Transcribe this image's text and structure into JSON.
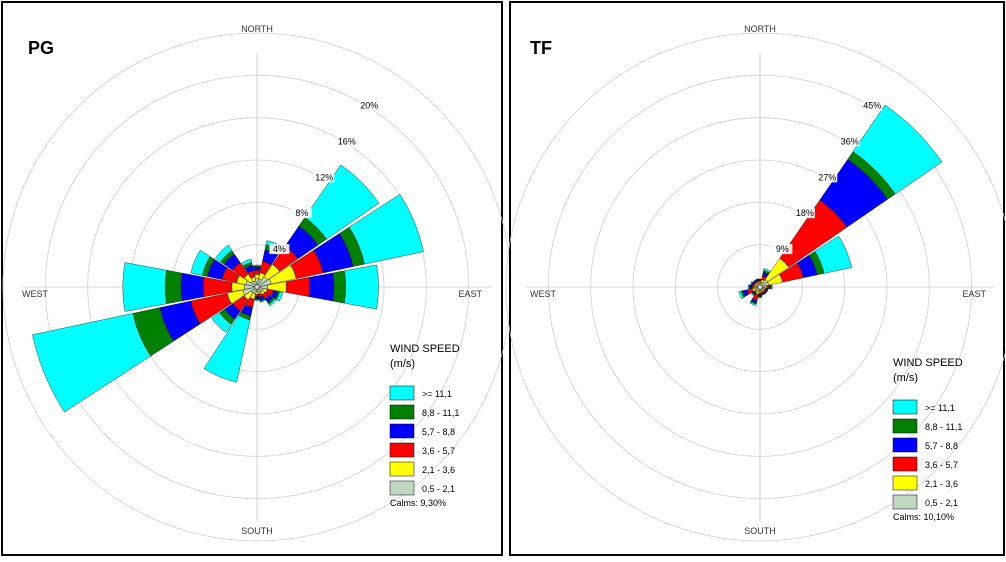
{
  "chart_data": [
    {
      "type": "windrose",
      "title": "PG",
      "compass": {
        "north": "NORTH",
        "east": "EAST",
        "south": "SOUTH",
        "west": "WEST"
      },
      "rmax": 24,
      "ring_labels": [
        "4%",
        "8%",
        "12%",
        "16%",
        "20%"
      ],
      "ring_values": [
        4,
        8,
        12,
        16,
        20
      ],
      "legend": {
        "title_line1": "WIND SPEED",
        "title_line2": "(m/s)",
        "bins": [
          ">= 11,1",
          "8,8 - 11,1",
          "5,7 -  8,8",
          "3,6 -  5,7",
          "2,1 -  3,6",
          "0,5 -  2,1"
        ],
        "calms": "Calms: 9,30%"
      },
      "directions": [
        {
          "angle": 0,
          "cumulative": [
            0.6,
            1.0,
            1.4,
            1.7,
            1.8,
            1.9
          ]
        },
        {
          "angle": 22.5,
          "cumulative": [
            0.6,
            1.2,
            2.3,
            3.4,
            3.9,
            4.3
          ]
        },
        {
          "angle": 45,
          "cumulative": [
            1.0,
            2.4,
            4.5,
            6.8,
            7.8,
            13.8
          ]
        },
        {
          "angle": 67.5,
          "cumulative": [
            1.2,
            3.6,
            6.2,
            9.1,
            10.2,
            15.9
          ]
        },
        {
          "angle": 90,
          "cumulative": [
            0.8,
            2.6,
            4.8,
            7.1,
            8.2,
            11.3
          ]
        },
        {
          "angle": 112.5,
          "cumulative": [
            0.4,
            0.8,
            1.4,
            1.8,
            2.0,
            2.3
          ]
        },
        {
          "angle": 135,
          "cumulative": [
            0.4,
            0.7,
            1.2,
            1.6,
            1.8,
            2.0
          ]
        },
        {
          "angle": 157.5,
          "cumulative": [
            0.3,
            0.5,
            0.8,
            1.1,
            1.2,
            1.3
          ]
        },
        {
          "angle": 180,
          "cumulative": [
            0.3,
            0.5,
            0.7,
            0.9,
            1.0,
            1.1
          ]
        },
        {
          "angle": 202.5,
          "cumulative": [
            0.5,
            1.0,
            1.8,
            2.6,
            3.0,
            9.0
          ]
        },
        {
          "angle": 225,
          "cumulative": [
            0.5,
            1.3,
            2.6,
            3.5,
            4.1,
            5.0
          ]
        },
        {
          "angle": 247.5,
          "cumulative": [
            1.2,
            2.7,
            6.2,
            9.2,
            11.8,
            21.5
          ]
        },
        {
          "angle": 270,
          "cumulative": [
            1.0,
            2.2,
            4.9,
            7.0,
            8.5,
            12.5
          ]
        },
        {
          "angle": 292.5,
          "cumulative": [
            0.9,
            1.8,
            3.2,
            4.6,
            5.1,
            6.2
          ]
        },
        {
          "angle": 315,
          "cumulative": [
            0.5,
            1.3,
            2.6,
            3.6,
            4.0,
            4.6
          ]
        },
        {
          "angle": 337.5,
          "cumulative": [
            0.4,
            0.8,
            1.4,
            1.9,
            2.2,
            2.5
          ]
        }
      ]
    },
    {
      "type": "windrose",
      "title": "TF",
      "compass": {
        "north": "NORTH",
        "east": "EAST",
        "south": "SOUTH",
        "west": "WEST"
      },
      "rmax": 54,
      "ring_labels": [
        "9%",
        "18%",
        "27%",
        "36%",
        "45%"
      ],
      "ring_values": [
        9,
        18,
        27,
        36,
        45
      ],
      "legend": {
        "title_line1": "WIND SPEED",
        "title_line2": "(m/s)",
        "bins": [
          ">= 11,1",
          "8,8 - 11,1",
          "5,7 -  8,8",
          "3,6 -  5,7",
          "2,1 -  3,6",
          "0,5 -  2,1"
        ],
        "calms": "Calms: 10,10%"
      },
      "directions": [
        {
          "angle": 0,
          "cumulative": [
            0.5,
            0.8,
            1.0,
            1.1,
            1.2,
            1.3
          ]
        },
        {
          "angle": 22.5,
          "cumulative": [
            0.6,
            1.2,
            2.0,
            2.8,
            3.2,
            3.6
          ]
        },
        {
          "angle": 45,
          "cumulative": [
            1.5,
            7.0,
            22.0,
            32.5,
            34.5,
            46.5
          ]
        },
        {
          "angle": 67.5,
          "cumulative": [
            1.5,
            4.5,
            9.0,
            12.0,
            13.5,
            19.5
          ]
        },
        {
          "angle": 90,
          "cumulative": [
            0.6,
            1.0,
            1.5,
            1.8,
            2.0,
            2.2
          ]
        },
        {
          "angle": 112.5,
          "cumulative": [
            0.4,
            0.7,
            1.0,
            1.2,
            1.3,
            1.4
          ]
        },
        {
          "angle": 135,
          "cumulative": [
            0.4,
            0.7,
            1.0,
            1.2,
            1.3,
            1.4
          ]
        },
        {
          "angle": 157.5,
          "cumulative": [
            0.4,
            0.7,
            1.0,
            1.2,
            1.3,
            1.4
          ]
        },
        {
          "angle": 180,
          "cumulative": [
            0.4,
            0.8,
            1.2,
            1.5,
            1.7,
            1.9
          ]
        },
        {
          "angle": 202.5,
          "cumulative": [
            0.6,
            1.2,
            2.5,
            3.0,
            3.3,
            3.6
          ]
        },
        {
          "angle": 225,
          "cumulative": [
            0.4,
            0.8,
            1.2,
            1.5,
            1.7,
            1.9
          ]
        },
        {
          "angle": 247.5,
          "cumulative": [
            0.6,
            1.3,
            2.4,
            3.3,
            3.7,
            4.2
          ]
        },
        {
          "angle": 270,
          "cumulative": [
            0.4,
            0.8,
            1.3,
            1.7,
            1.9,
            2.1
          ]
        },
        {
          "angle": 292.5,
          "cumulative": [
            0.4,
            0.8,
            1.2,
            1.4,
            1.5,
            1.7
          ]
        },
        {
          "angle": 315,
          "cumulative": [
            0.4,
            0.7,
            1.0,
            1.2,
            1.3,
            1.4
          ]
        },
        {
          "angle": 337.5,
          "cumulative": [
            0.4,
            0.7,
            1.0,
            1.2,
            1.3,
            1.4
          ]
        }
      ]
    }
  ],
  "colors": {
    "bins": [
      "#c0d8c0",
      "#ffff00",
      "#ff0000",
      "#0000ff",
      "#008000",
      "#00ffff"
    ],
    "ring": "#d0d0d0",
    "axis": "#c8c8c8",
    "frame": "#000000"
  }
}
